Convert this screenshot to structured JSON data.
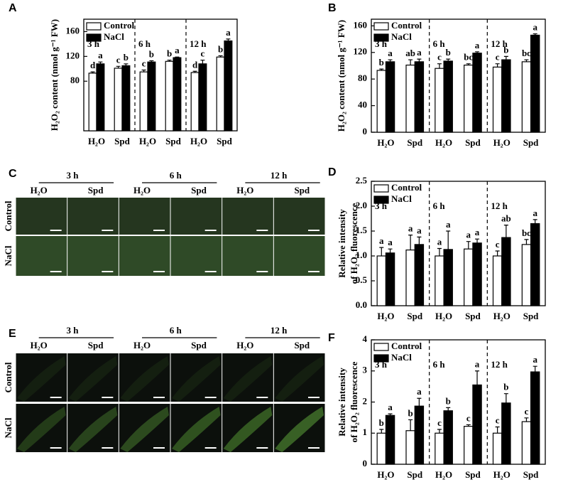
{
  "chart_data": [
    {
      "type": "bar",
      "panel_label": "A",
      "ylabel": [
        "H₂O₂ content (nmol g⁻¹ FW)"
      ],
      "categories": [
        "H₂O",
        "Spd",
        "H₂O",
        "Spd",
        "H₂O",
        "Spd"
      ],
      "groups": [
        "3 h",
        "6 h",
        "12 h"
      ],
      "series": [
        {
          "name": "Control",
          "color": "#ffffff",
          "values": [
            93,
            101,
            95,
            112,
            94,
            119
          ],
          "errors": [
            2,
            3,
            3,
            2,
            2,
            2
          ],
          "letters": [
            "d",
            "c",
            "c",
            "b",
            "d",
            "b"
          ]
        },
        {
          "name": "NaCl",
          "color": "#000000",
          "values": [
            108,
            105,
            111,
            118,
            108,
            145
          ],
          "errors": [
            3,
            3,
            2,
            1,
            6,
            3
          ],
          "letters": [
            "a",
            "b",
            "b",
            "a",
            "c",
            "a"
          ]
        }
      ],
      "ylim": [
        0,
        180
      ],
      "yticks": [
        80,
        120,
        160
      ],
      "legend": "top-left"
    },
    {
      "type": "bar",
      "panel_label": "B",
      "ylabel": [
        "H₂O₂ content (nmol g⁻¹ FW)"
      ],
      "categories": [
        "H₂O",
        "Spd",
        "H₂O",
        "Spd",
        "H₂O",
        "Spd"
      ],
      "groups": [
        "3 h",
        "6 h",
        "12 h"
      ],
      "series": [
        {
          "name": "Control",
          "color": "#ffffff",
          "values": [
            93,
            101,
            96,
            101,
            98,
            106
          ],
          "errors": [
            2,
            8,
            7,
            2,
            5,
            3
          ],
          "letters": [
            "b",
            "ab",
            "c",
            "bc",
            "c",
            "bc"
          ]
        },
        {
          "name": "NaCl",
          "color": "#000000",
          "values": [
            106,
            106,
            107,
            119,
            109,
            146
          ],
          "errors": [
            3,
            4,
            3,
            2,
            5,
            2
          ],
          "letters": [
            "a",
            "a",
            "b",
            "a",
            "b",
            "a"
          ]
        }
      ],
      "ylim": [
        0,
        170
      ],
      "yticks": [
        0,
        40,
        80,
        120,
        160
      ],
      "legend": "top-left"
    },
    {
      "type": "bar",
      "panel_label": "D",
      "ylabel": [
        "Relative intensity",
        "of H₂O₂ fluorescence"
      ],
      "categories": [
        "H₂O",
        "Spd",
        "H₂O",
        "Spd",
        "H₂O",
        "Spd"
      ],
      "groups": [
        "3 h",
        "6 h",
        "12 h"
      ],
      "series": [
        {
          "name": "Control",
          "color": "#ffffff",
          "values": [
            1.0,
            1.12,
            1.0,
            1.14,
            1.0,
            1.23
          ],
          "errors": [
            0.17,
            0.3,
            0.15,
            0.15,
            0.1,
            0.1
          ],
          "letters": [
            "a",
            "a",
            "a",
            "a",
            "c",
            "bc"
          ]
        },
        {
          "name": "NaCl",
          "color": "#000000",
          "values": [
            1.06,
            1.23,
            1.13,
            1.26,
            1.37,
            1.65
          ],
          "errors": [
            0.08,
            0.15,
            0.37,
            0.08,
            0.25,
            0.08
          ],
          "letters": [
            "a",
            "a",
            "a",
            "a",
            "ab",
            "a"
          ]
        }
      ],
      "ylim": [
        0,
        2.5
      ],
      "yticks": [
        {
          "value": 0,
          "label": "0.0"
        },
        0.5,
        {
          "value": 1,
          "label": "1.0"
        },
        1.5,
        {
          "value": 2,
          "label": "2.0"
        },
        2.5
      ],
      "legend": "top-left"
    },
    {
      "type": "bar",
      "panel_label": "F",
      "ylabel": [
        "Relative intensity",
        "of H₂O₂ fluorescence"
      ],
      "categories": [
        "H₂O",
        "Spd",
        "H₂O",
        "Spd",
        "H₂O",
        "Spd"
      ],
      "groups": [
        "3 h",
        "6 h",
        "12 h"
      ],
      "series": [
        {
          "name": "Control",
          "color": "#ffffff",
          "values": [
            1.0,
            1.08,
            1.0,
            1.22,
            1.0,
            1.37
          ],
          "errors": [
            0.12,
            0.35,
            0.12,
            0.05,
            0.2,
            0.12
          ],
          "letters": [
            "b",
            "b",
            "c",
            "c",
            "c",
            "c"
          ]
        },
        {
          "name": "NaCl",
          "color": "#000000",
          "values": [
            1.57,
            1.87,
            1.72,
            2.55,
            1.97,
            2.97
          ],
          "errors": [
            0.05,
            0.25,
            0.1,
            0.45,
            0.3,
            0.18
          ],
          "letters": [
            "a",
            "a",
            "b",
            "a",
            "b",
            "a"
          ]
        }
      ],
      "ylim": [
        0,
        4
      ],
      "yticks": [
        0,
        1,
        2,
        3,
        4
      ],
      "legend": "top-left"
    }
  ],
  "image_panels": [
    {
      "panel_label": "C",
      "times": [
        "3 h",
        "6 h",
        "12 h"
      ],
      "treatments": [
        "H₂O",
        "Spd"
      ],
      "rows": [
        "Control",
        "NaCl"
      ]
    },
    {
      "panel_label": "E",
      "times": [
        "3 h",
        "6 h",
        "12 h"
      ],
      "treatments": [
        "H₂O",
        "Spd"
      ],
      "rows": [
        "Control",
        "NaCl"
      ]
    }
  ]
}
